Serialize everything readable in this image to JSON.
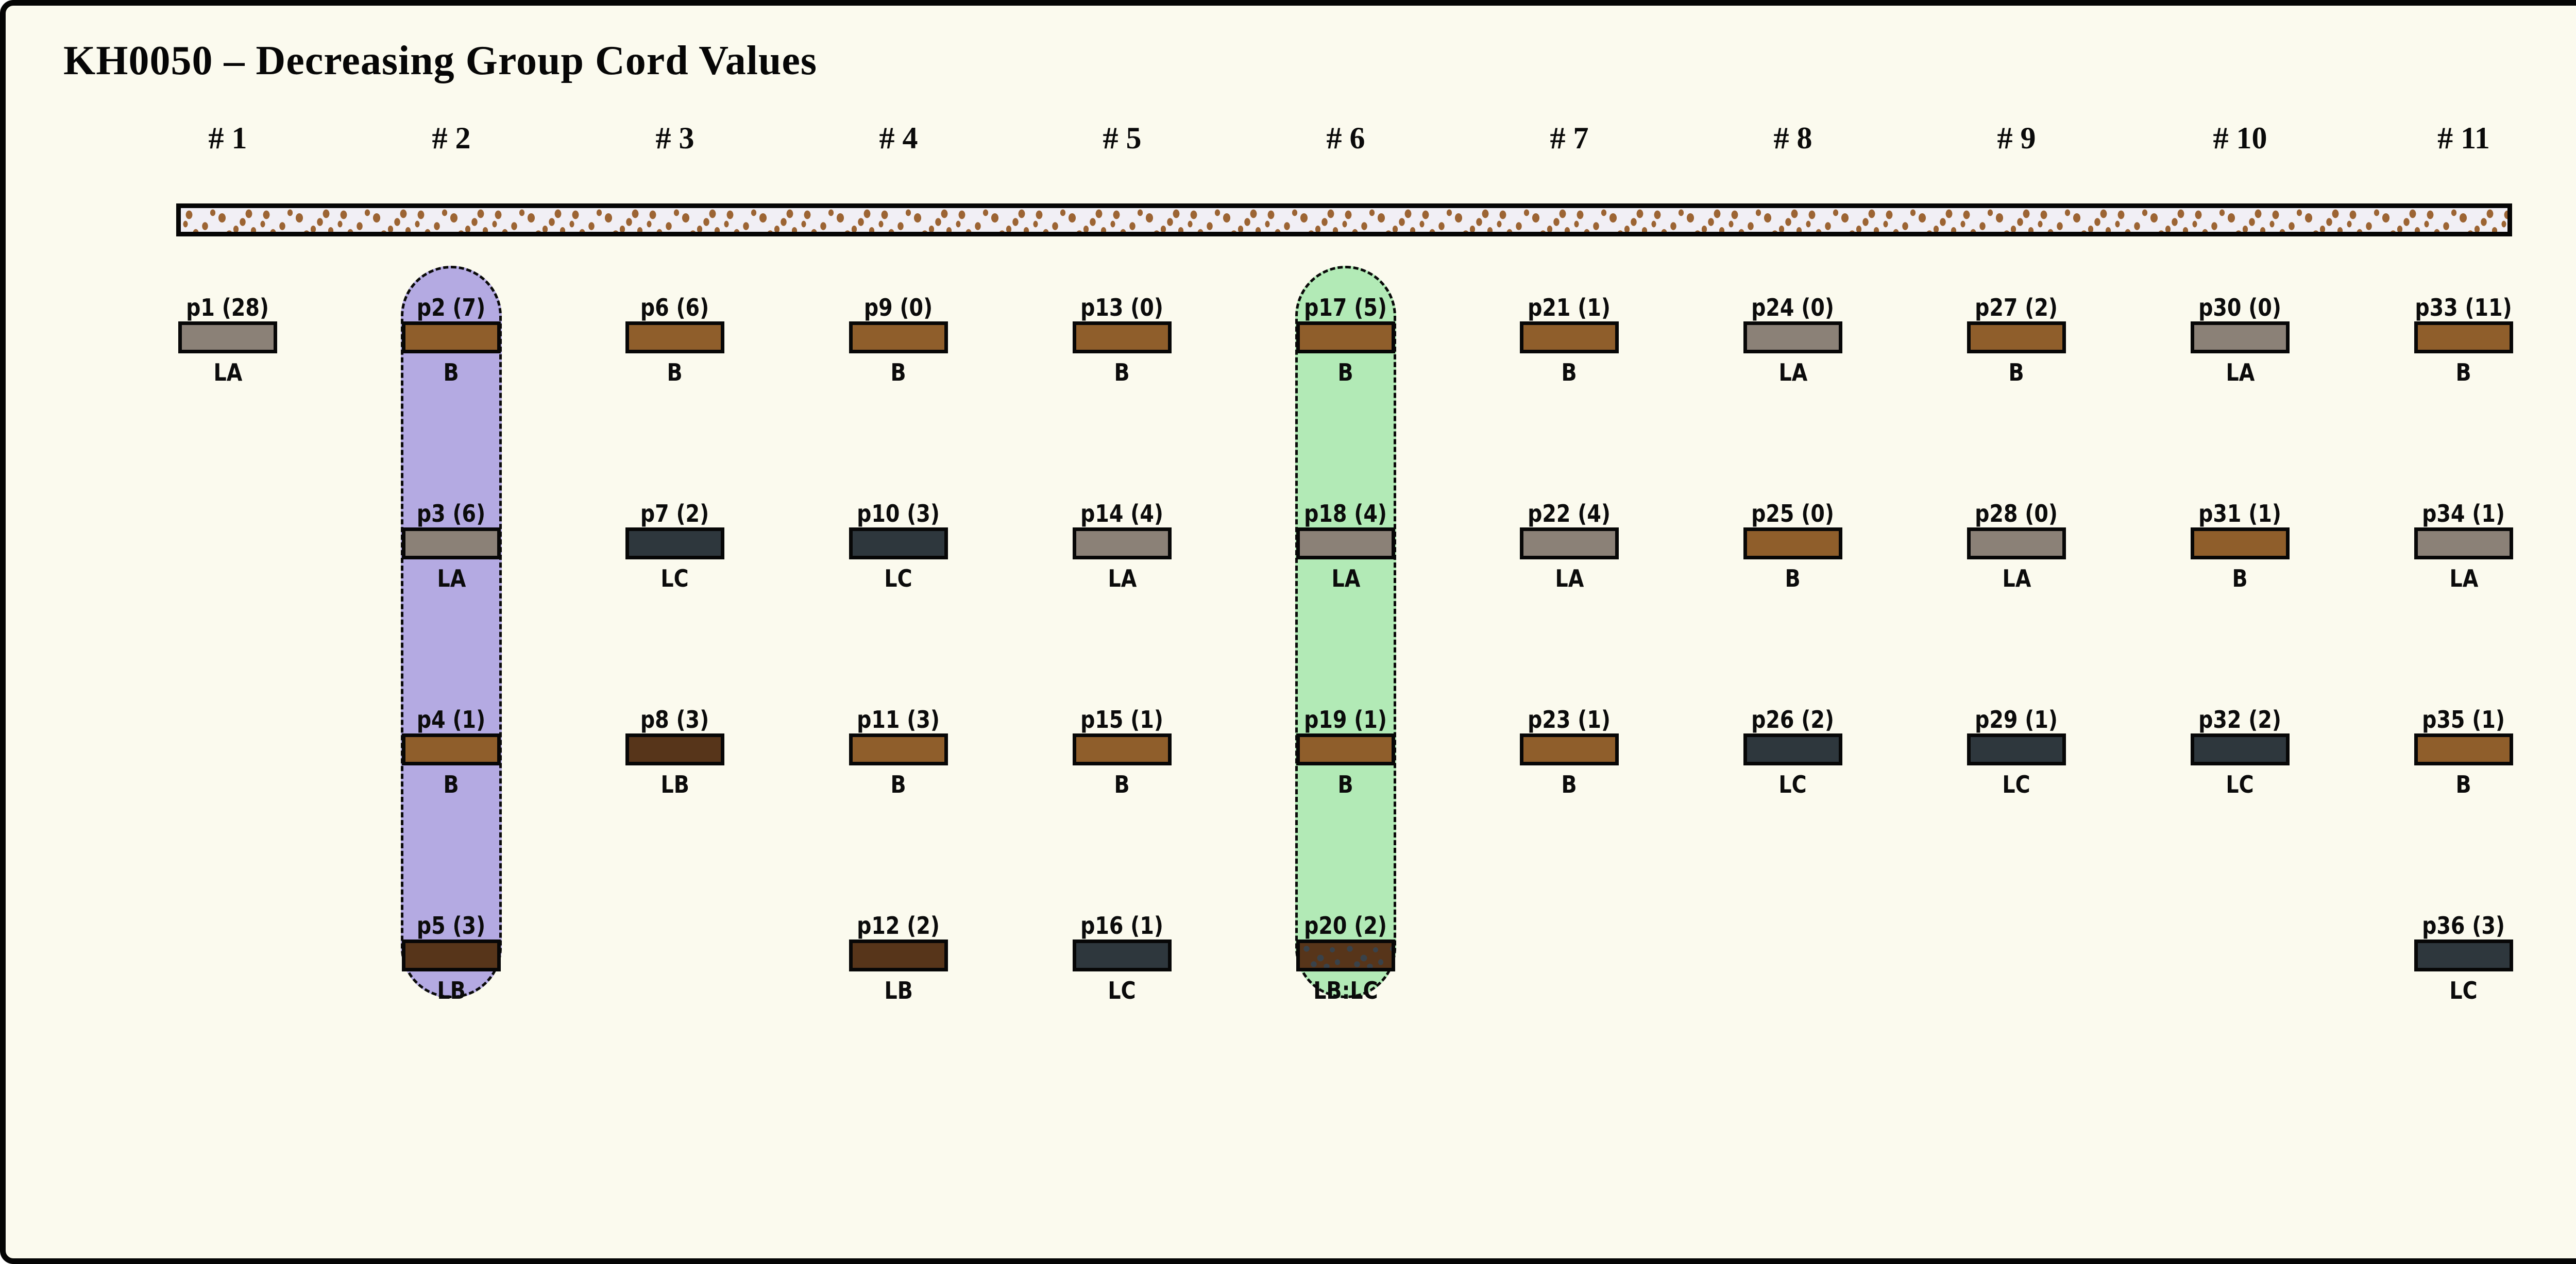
{
  "title": "KH0050 – Decreasing Group Cord Values",
  "colors": {
    "page_background": "#fbfaee",
    "frame_border": "#050505",
    "type_B": "#8f5e2b",
    "type_LA": "#8b8177",
    "type_LB": "#57351a",
    "type_LC": "#2e373d",
    "type_LB_LC_base": "#57351a",
    "type_LB_LC_speckle": "#39424a",
    "texture_bar_background": "#f1eff5",
    "texture_bar_speckle": "#9c6433",
    "highlight_purple": "#b4aae2",
    "highlight_green": "#b2eab6"
  },
  "columns": [
    {
      "header": "# 1",
      "highlight": null,
      "items": [
        {
          "label": "p1 (28)",
          "type": "LA",
          "row": 1
        }
      ]
    },
    {
      "header": "# 2",
      "highlight": "purple",
      "items": [
        {
          "label": "p2 (7)",
          "type": "B",
          "row": 1
        },
        {
          "label": "p3 (6)",
          "type": "LA",
          "row": 2
        },
        {
          "label": "p4 (1)",
          "type": "B",
          "row": 3
        },
        {
          "label": "p5 (3)",
          "type": "LB",
          "row": 4
        }
      ]
    },
    {
      "header": "# 3",
      "highlight": null,
      "items": [
        {
          "label": "p6 (6)",
          "type": "B",
          "row": 1
        },
        {
          "label": "p7 (2)",
          "type": "LC",
          "row": 2
        },
        {
          "label": "p8 (3)",
          "type": "LB",
          "row": 3
        }
      ]
    },
    {
      "header": "# 4",
      "highlight": null,
      "items": [
        {
          "label": "p9 (0)",
          "type": "B",
          "row": 1
        },
        {
          "label": "p10 (3)",
          "type": "LC",
          "row": 2
        },
        {
          "label": "p11 (3)",
          "type": "B",
          "row": 3
        },
        {
          "label": "p12 (2)",
          "type": "LB",
          "row": 4
        }
      ]
    },
    {
      "header": "# 5",
      "highlight": null,
      "items": [
        {
          "label": "p13 (0)",
          "type": "B",
          "row": 1
        },
        {
          "label": "p14 (4)",
          "type": "LA",
          "row": 2
        },
        {
          "label": "p15 (1)",
          "type": "B",
          "row": 3
        },
        {
          "label": "p16 (1)",
          "type": "LC",
          "row": 4
        }
      ]
    },
    {
      "header": "# 6",
      "highlight": "green",
      "items": [
        {
          "label": "p17 (5)",
          "type": "B",
          "row": 1
        },
        {
          "label": "p18 (4)",
          "type": "LA",
          "row": 2
        },
        {
          "label": "p19 (1)",
          "type": "B",
          "row": 3
        },
        {
          "label": "p20 (2)",
          "type": "LB:LC",
          "row": 4
        }
      ]
    },
    {
      "header": "# 7",
      "highlight": null,
      "items": [
        {
          "label": "p21 (1)",
          "type": "B",
          "row": 1
        },
        {
          "label": "p22 (4)",
          "type": "LA",
          "row": 2
        },
        {
          "label": "p23 (1)",
          "type": "B",
          "row": 3
        }
      ]
    },
    {
      "header": "# 8",
      "highlight": null,
      "items": [
        {
          "label": "p24 (0)",
          "type": "LA",
          "row": 1
        },
        {
          "label": "p25 (0)",
          "type": "B",
          "row": 2
        },
        {
          "label": "p26 (2)",
          "type": "LC",
          "row": 3
        }
      ]
    },
    {
      "header": "# 9",
      "highlight": null,
      "items": [
        {
          "label": "p27 (2)",
          "type": "B",
          "row": 1
        },
        {
          "label": "p28 (0)",
          "type": "LA",
          "row": 2
        },
        {
          "label": "p29 (1)",
          "type": "LC",
          "row": 3
        }
      ]
    },
    {
      "header": "# 10",
      "highlight": null,
      "items": [
        {
          "label": "p30 (0)",
          "type": "LA",
          "row": 1
        },
        {
          "label": "p31 (1)",
          "type": "B",
          "row": 2
        },
        {
          "label": "p32 (2)",
          "type": "LC",
          "row": 3
        }
      ]
    },
    {
      "header": "# 11",
      "highlight": null,
      "items": [
        {
          "label": "p33 (11)",
          "type": "B",
          "row": 1
        },
        {
          "label": "p34 (1)",
          "type": "LA",
          "row": 2
        },
        {
          "label": "p35 (1)",
          "type": "B",
          "row": 3
        },
        {
          "label": "p36 (3)",
          "type": "LC",
          "row": 4
        }
      ]
    }
  ]
}
